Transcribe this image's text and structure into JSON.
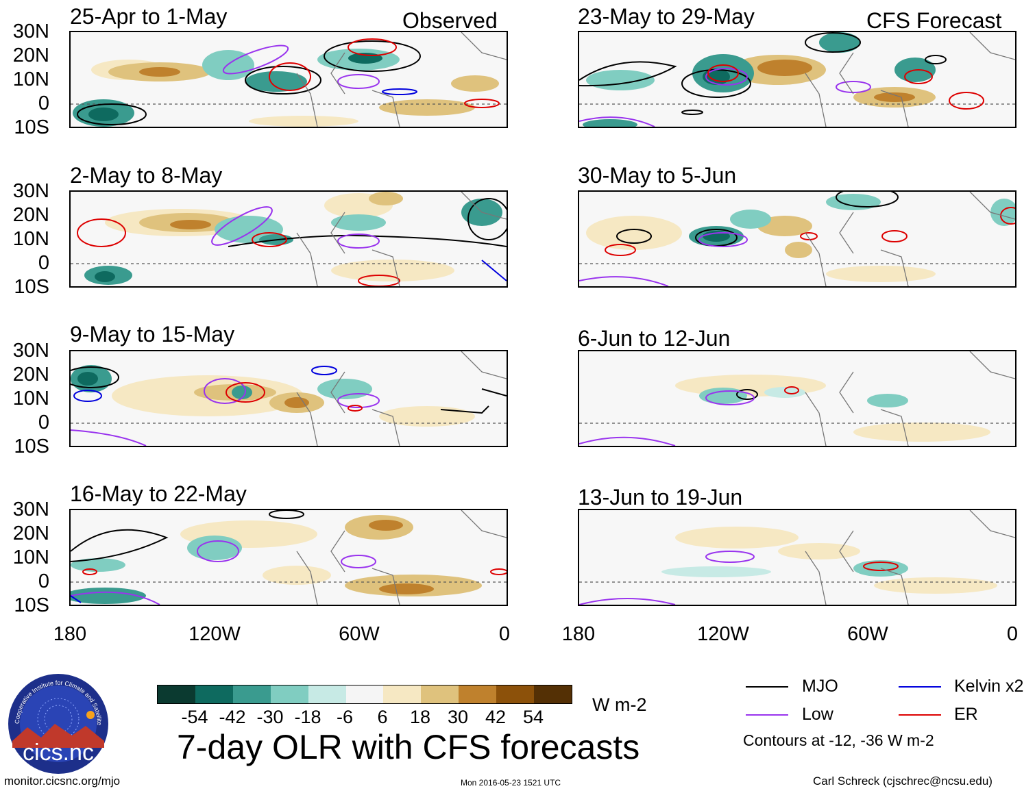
{
  "left_panels": [
    {
      "date_range": "25-Apr to 1-May",
      "corner_label": "Observed"
    },
    {
      "date_range": "2-May to 8-May",
      "corner_label": ""
    },
    {
      "date_range": "9-May to 15-May",
      "corner_label": ""
    },
    {
      "date_range": "16-May to 22-May",
      "corner_label": ""
    }
  ],
  "right_panels": [
    {
      "date_range": "23-May to 29-May",
      "corner_label": "CFS Forecast"
    },
    {
      "date_range": "30-May to 5-Jun",
      "corner_label": ""
    },
    {
      "date_range": "6-Jun to 12-Jun",
      "corner_label": ""
    },
    {
      "date_range": "13-Jun to 19-Jun",
      "corner_label": ""
    }
  ],
  "lat_labels": [
    "30N",
    "20N",
    "10N",
    "0",
    "10S"
  ],
  "lon_labels": [
    "180",
    "120W",
    "60W",
    "0"
  ],
  "colorbar": {
    "colors": [
      "#0b3a30",
      "#0e6a5f",
      "#3a9b8f",
      "#80cdc1",
      "#c7eae5",
      "#f5f5f5",
      "#f6e8c3",
      "#dfc27d",
      "#bf812d",
      "#8c510a",
      "#543005"
    ],
    "ticks": [
      "-54",
      "-42",
      "-30",
      "-18",
      "-6",
      "6",
      "18",
      "30",
      "42",
      "54"
    ],
    "units": "W m-2"
  },
  "legend": {
    "items": [
      {
        "label": "MJO",
        "color": "#000000"
      },
      {
        "label": "Kelvin x2",
        "color": "#0000dd"
      },
      {
        "label": "Low",
        "color": "#9933ee"
      },
      {
        "label": "ER",
        "color": "#dd0000"
      }
    ],
    "note": "Contours at -12, -36 W m-2"
  },
  "main_title": "7-day OLR with CFS forecasts",
  "logo_text": "cics.nc",
  "logo_ring_text": "Cooperative Institute for Climate and Satellites",
  "footer": {
    "url": "monitor.cicsnc.org/mjo",
    "timestamp": "Mon 2016-05-23 1521 UTC",
    "author": "Carl Schreck (cjschrec@ncsu.edu)"
  }
}
